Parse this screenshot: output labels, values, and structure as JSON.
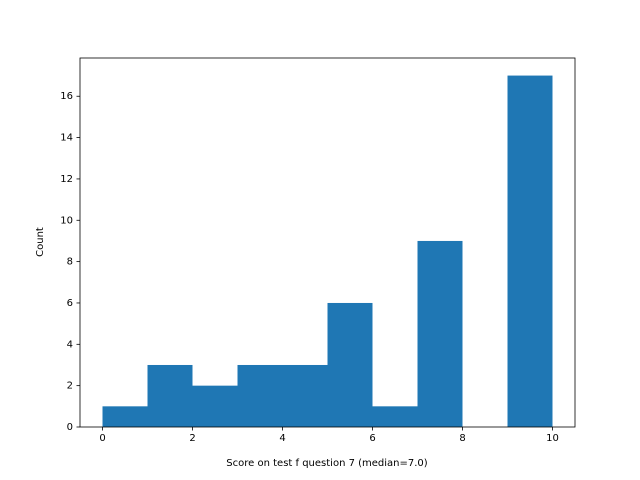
{
  "chart_data": {
    "type": "histogram",
    "x_label": "Score on test f question 7 (median=7.0)",
    "y_label": "Count",
    "bins": [
      0,
      1,
      2,
      3,
      4,
      5,
      6,
      7,
      8,
      9,
      10
    ],
    "values": [
      1,
      3,
      2,
      3,
      3,
      6,
      1,
      9,
      0,
      17
    ],
    "color": "#1f77b4",
    "xlim": [
      -0.5,
      10.5
    ],
    "ylim": [
      0,
      17.85
    ],
    "xticks": [
      0,
      2,
      4,
      6,
      8,
      10
    ],
    "yticks": [
      0,
      2,
      4,
      6,
      8,
      10,
      12,
      14,
      16
    ],
    "grid": false
  }
}
